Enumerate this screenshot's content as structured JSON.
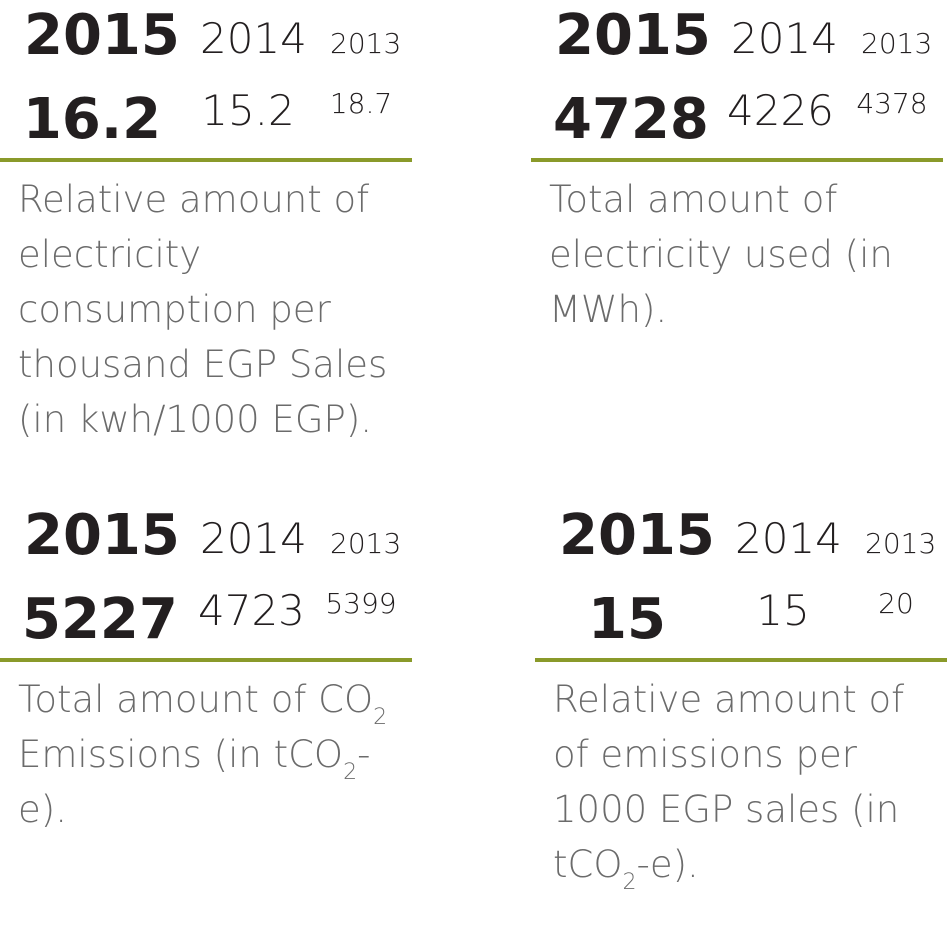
{
  "panels": [
    {
      "years": [
        "2015",
        "2014",
        "2013"
      ],
      "values": [
        "16.2",
        "15.2",
        "18.7"
      ],
      "description": "Relative amount of electricity consumption per thousand EGP Sales (in kwh/1000 EGP)."
    },
    {
      "years": [
        "2015",
        "2014",
        "2013"
      ],
      "values": [
        "4728",
        "4226",
        "4378"
      ],
      "description": "Total amount of electricity used (in MWh)."
    },
    {
      "years": [
        "2015",
        "2014",
        "2013"
      ],
      "values": [
        "5227",
        "4723",
        "5399"
      ],
      "description_parts": [
        "Total amount of CO",
        "2",
        " Emissions (in tCO",
        "2",
        "-e)."
      ]
    },
    {
      "years": [
        "2015",
        "2014",
        "2013"
      ],
      "values": [
        "15",
        "15",
        "20"
      ],
      "description_parts": [
        "Relative amount of of emissions per 1000 EGP sales (in tCO",
        "2",
        "-e)."
      ]
    }
  ],
  "colors": {
    "rule": "#8a9a2a",
    "text_dark": "#231f20",
    "text_grey": "#6b6b6b"
  }
}
